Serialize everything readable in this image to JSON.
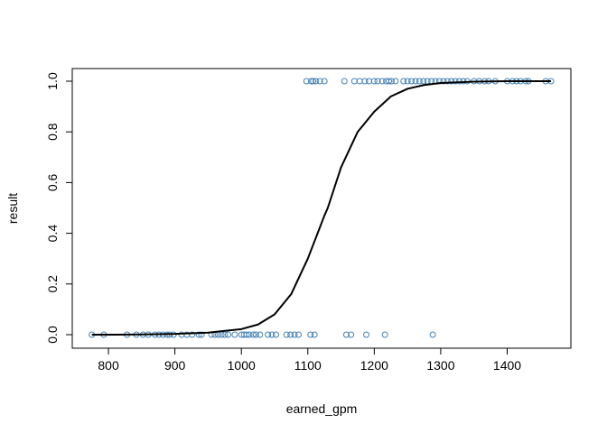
{
  "chart_data": {
    "type": "scatter",
    "xlabel": "earned_gpm",
    "ylabel": "result",
    "xlim": [
      770,
      1470
    ],
    "ylim": [
      0,
      1
    ],
    "x_ticks": [
      800,
      900,
      1000,
      1100,
      1200,
      1300,
      1400
    ],
    "x_tick_labels": [
      "800",
      "900",
      "1000",
      "1100",
      "1200",
      "1300",
      "1400"
    ],
    "y_ticks": [
      0,
      0.2,
      0.4,
      0.6,
      0.8,
      1
    ],
    "y_tick_labels": [
      "0.0",
      "0.2",
      "0.4",
      "0.6",
      "0.8",
      "1.0"
    ],
    "grid": false,
    "legend": "none",
    "point_color": "#4682b4",
    "curve_color": "#000000",
    "series": [
      {
        "kind": "points",
        "x": [
          775,
          793,
          828,
          842,
          852,
          860,
          870,
          876,
          882,
          888,
          892,
          898,
          910,
          918,
          926,
          936,
          940,
          955,
          960,
          965,
          970,
          975,
          980,
          990,
          1000,
          1004,
          1008,
          1012,
          1018,
          1022,
          1028,
          1040,
          1046,
          1052,
          1068,
          1074,
          1080,
          1086,
          1104,
          1110,
          1158,
          1165,
          1188,
          1216,
          1288,
          1098,
          1105,
          1108,
          1112,
          1118,
          1125,
          1155,
          1170,
          1178,
          1186,
          1192,
          1200,
          1205,
          1212,
          1218,
          1222,
          1226,
          1232,
          1244,
          1250,
          1256,
          1262,
          1268,
          1274,
          1280,
          1286,
          1292,
          1298,
          1304,
          1310,
          1316,
          1322,
          1328,
          1334,
          1340,
          1350,
          1358,
          1366,
          1372,
          1382,
          1400,
          1408,
          1414,
          1420,
          1428,
          1432,
          1458,
          1466
        ],
        "y": [
          0,
          0,
          0,
          0,
          0,
          0,
          0,
          0,
          0,
          0,
          0,
          0,
          0,
          0,
          0,
          0,
          0,
          0,
          0,
          0,
          0,
          0,
          0,
          0,
          0,
          0,
          0,
          0,
          0,
          0,
          0,
          0,
          0,
          0,
          0,
          0,
          0,
          0,
          0,
          0,
          0,
          0,
          0,
          0,
          0,
          1,
          1,
          1,
          1,
          1,
          1,
          1,
          1,
          1,
          1,
          1,
          1,
          1,
          1,
          1,
          1,
          1,
          1,
          1,
          1,
          1,
          1,
          1,
          1,
          1,
          1,
          1,
          1,
          1,
          1,
          1,
          1,
          1,
          1,
          1,
          1,
          1,
          1,
          1,
          1,
          1,
          1,
          1,
          1,
          1,
          1,
          1,
          1
        ]
      },
      {
        "kind": "curve",
        "x": [
          775,
          800,
          850,
          900,
          950,
          1000,
          1025,
          1050,
          1075,
          1100,
          1125,
          1130,
          1150,
          1175,
          1200,
          1225,
          1250,
          1275,
          1300,
          1350,
          1400,
          1466
        ],
        "y": [
          0.0,
          0.0,
          0.001,
          0.003,
          0.008,
          0.022,
          0.04,
          0.08,
          0.16,
          0.3,
          0.47,
          0.5,
          0.66,
          0.8,
          0.88,
          0.94,
          0.97,
          0.985,
          0.993,
          0.998,
          1.0,
          1.0
        ]
      }
    ]
  }
}
